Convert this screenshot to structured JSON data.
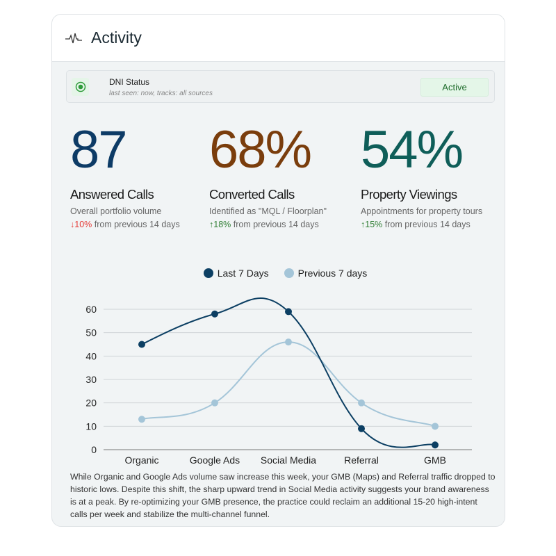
{
  "header": {
    "title": "Activity",
    "icon": "activity-pulse-icon"
  },
  "dni": {
    "title": "DNI Status",
    "subtitle": "last seen: now, tracks: all sources",
    "status": "Active",
    "status_color": "#1d6b2a"
  },
  "stats": [
    {
      "value": "87",
      "color": "#0d3b66",
      "label": "Answered Calls",
      "desc": "Overall portfolio volume",
      "arrow": "↓",
      "change": "10%",
      "direction": "down",
      "suffix": " from previous 14 days"
    },
    {
      "value": "68%",
      "color": "#7a3d0c",
      "label": "Converted Calls",
      "desc": "Identified as \"MQL / Floorplan\"",
      "arrow": "↑",
      "change": "18%",
      "direction": "up",
      "suffix": " from previous 14 days"
    },
    {
      "value": "54%",
      "color": "#0f5e59",
      "label": "Property Viewings",
      "desc": "Appointments for property tours",
      "arrow": "↑",
      "change": "15%",
      "direction": "up",
      "suffix": " from previous 14 days"
    }
  ],
  "chart_data": {
    "type": "line",
    "categories": [
      "Organic",
      "Google Ads",
      "Social Media",
      "Referral",
      "GMB"
    ],
    "series": [
      {
        "name": "Last 7 Days",
        "color": "#0c3f63",
        "values": [
          45,
          58,
          59,
          9,
          2
        ]
      },
      {
        "name": "Previous 7 days",
        "color": "#a4c5d8",
        "values": [
          13,
          20,
          46,
          20,
          10
        ]
      }
    ],
    "yticks": [
      0,
      10,
      20,
      30,
      40,
      50,
      60
    ],
    "ylim": [
      0,
      60
    ],
    "legend": "top-center",
    "grid": true
  },
  "summary": "While Organic and Google Ads volume saw increase this week, your GMB (Maps) and Referral traffic dropped to historic lows. Despite this shift, the sharp upward trend in Social Media activity suggests your brand awareness is at a peak. By re-optimizing your GMB presence, the practice could reclaim an additional 15-20 high-intent calls per week and stabilize the multi-channel funnel."
}
